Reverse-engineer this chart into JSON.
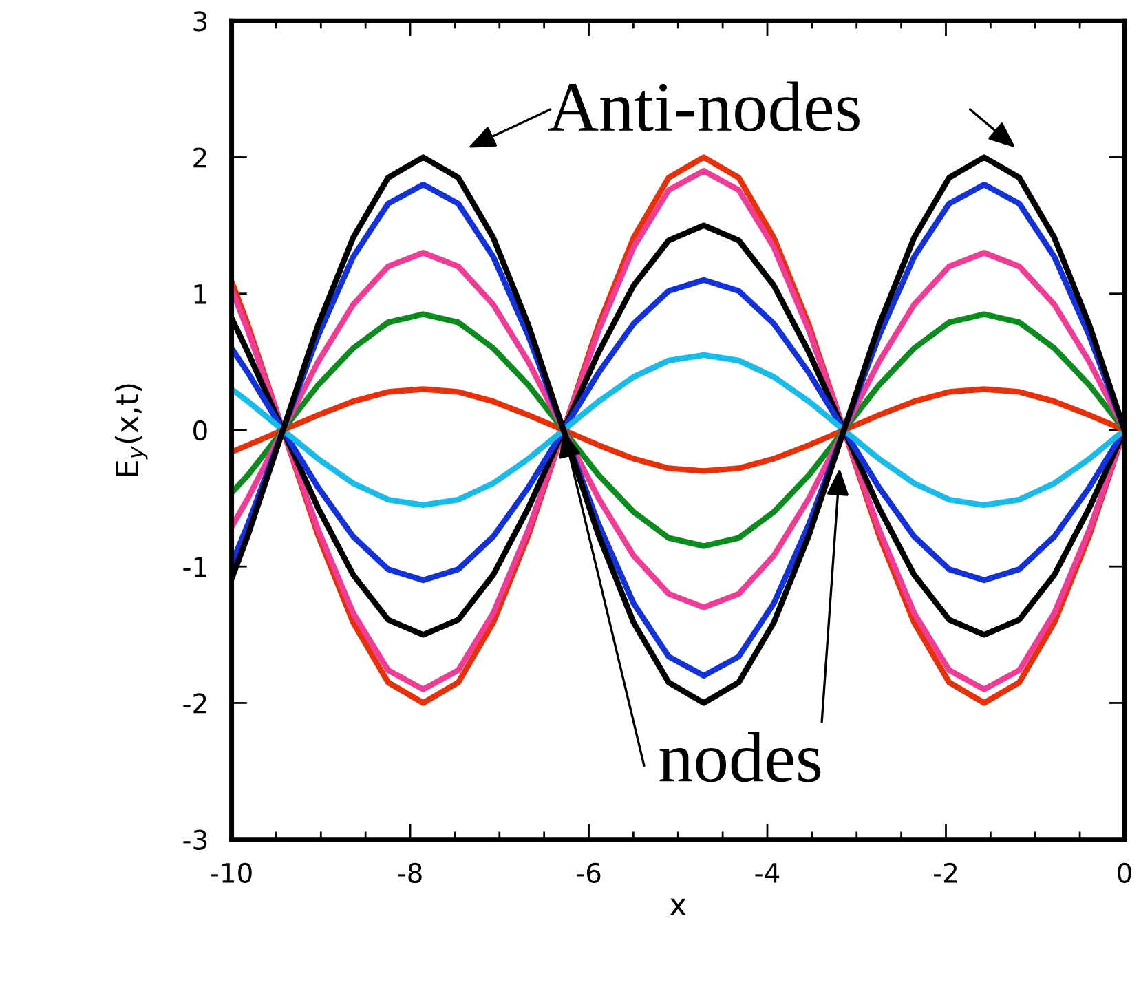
{
  "chart_data": {
    "type": "line",
    "xlabel": "x",
    "ylabel": "E$_{y}$(x,t)",
    "x": [
      -10,
      -9.817,
      -9.425,
      -9.032,
      -8.639,
      -8.247,
      -7.854,
      -7.461,
      -7.069,
      -6.676,
      -6.283,
      -5.89,
      -5.498,
      -5.105,
      -4.712,
      -4.32,
      -3.927,
      -3.534,
      -3.142,
      -2.749,
      -2.356,
      -1.963,
      -1.571,
      -1.178,
      -0.785,
      -0.393,
      0
    ],
    "series": [
      {
        "color": "#e8300a",
        "values": [
          1.09,
          0.77,
          0,
          -0.77,
          -1.41,
          -1.85,
          -2,
          -1.85,
          -1.41,
          -0.77,
          0,
          0.77,
          1.41,
          1.85,
          2,
          1.85,
          1.41,
          0.77,
          0,
          -0.77,
          -1.41,
          -1.85,
          -2,
          -1.85,
          -1.41,
          -0.77,
          0
        ]
      },
      {
        "color": "#f03c96",
        "values": [
          1.03,
          0.73,
          0,
          -0.73,
          -1.34,
          -1.76,
          -1.9,
          -1.76,
          -1.34,
          -0.73,
          0,
          0.73,
          1.34,
          1.76,
          1.9,
          1.76,
          1.34,
          0.73,
          0,
          -0.73,
          -1.34,
          -1.76,
          -1.9,
          -1.76,
          -1.34,
          -0.73,
          0
        ]
      },
      {
        "color": "#000000",
        "values": [
          0.82,
          0.57,
          0,
          -0.57,
          -1.06,
          -1.39,
          -1.5,
          -1.39,
          -1.06,
          -0.57,
          0,
          0.57,
          1.06,
          1.39,
          1.5,
          1.39,
          1.06,
          0.57,
          0,
          -0.57,
          -1.06,
          -1.39,
          -1.5,
          -1.39,
          -1.06,
          -0.57,
          0
        ]
      },
      {
        "color": "#1432dc",
        "values": [
          0.6,
          0.42,
          0,
          -0.42,
          -0.78,
          -1.02,
          -1.1,
          -1.02,
          -0.78,
          -0.42,
          0,
          0.42,
          0.78,
          1.02,
          1.1,
          1.02,
          0.78,
          0.42,
          0,
          -0.42,
          -0.78,
          -1.02,
          -1.1,
          -1.02,
          -0.78,
          -0.42,
          0
        ]
      },
      {
        "color": "#19bce8",
        "values": [
          0.3,
          0.21,
          0,
          -0.21,
          -0.39,
          -0.51,
          -0.55,
          -0.51,
          -0.39,
          -0.21,
          0,
          0.21,
          0.39,
          0.51,
          0.55,
          0.51,
          0.39,
          0.21,
          0,
          -0.21,
          -0.39,
          -0.51,
          -0.55,
          -0.51,
          -0.39,
          -0.21,
          0
        ]
      },
      {
        "color": "#e8300a",
        "values": [
          -0.16,
          -0.11,
          0,
          0.11,
          0.21,
          0.28,
          0.3,
          0.28,
          0.21,
          0.11,
          0,
          -0.11,
          -0.21,
          -0.28,
          -0.3,
          -0.28,
          -0.21,
          -0.11,
          0,
          0.11,
          0.21,
          0.28,
          0.3,
          0.28,
          0.21,
          0.11,
          0
        ]
      },
      {
        "color": "#0c8c1e",
        "values": [
          -0.46,
          -0.33,
          0,
          0.33,
          0.6,
          0.79,
          0.85,
          0.79,
          0.6,
          0.33,
          0,
          -0.33,
          -0.6,
          -0.79,
          -0.85,
          -0.79,
          -0.6,
          -0.33,
          0,
          0.33,
          0.6,
          0.79,
          0.85,
          0.79,
          0.6,
          0.33,
          0
        ]
      },
      {
        "color": "#f03c96",
        "values": [
          -0.71,
          -0.5,
          0,
          0.5,
          0.92,
          1.2,
          1.3,
          1.2,
          0.92,
          0.5,
          0,
          -0.5,
          -0.92,
          -1.2,
          -1.3,
          -1.2,
          -0.92,
          -0.5,
          0,
          0.5,
          0.92,
          1.2,
          1.3,
          1.2,
          0.92,
          0.5,
          0
        ]
      },
      {
        "color": "#1432dc",
        "values": [
          -0.98,
          -0.69,
          0,
          0.69,
          1.27,
          1.66,
          1.8,
          1.66,
          1.27,
          0.69,
          0,
          -0.69,
          -1.27,
          -1.66,
          -1.8,
          -1.66,
          -1.27,
          -0.69,
          0,
          0.69,
          1.27,
          1.66,
          1.8,
          1.66,
          1.27,
          0.69,
          0
        ]
      },
      {
        "color": "#000000",
        "values": [
          -1.09,
          -0.77,
          0,
          0.77,
          1.41,
          1.85,
          2,
          1.85,
          1.41,
          0.77,
          0,
          -0.77,
          -1.41,
          -1.85,
          -2,
          -1.85,
          -1.41,
          -0.77,
          0,
          0.77,
          1.41,
          1.85,
          2,
          1.85,
          1.41,
          0.77,
          0
        ]
      }
    ],
    "xlim": [
      -10,
      0
    ],
    "ylim": [
      -3,
      3
    ],
    "xticks": [
      -10,
      -8,
      -6,
      -4,
      -2,
      0
    ],
    "yticks": [
      -3,
      -2,
      -1,
      0,
      1,
      2,
      3
    ],
    "annotations": [
      "Anti-nodes",
      {
        "text": "nodes",
        "x": -6.283,
        "y": 0
      }
    ]
  }
}
